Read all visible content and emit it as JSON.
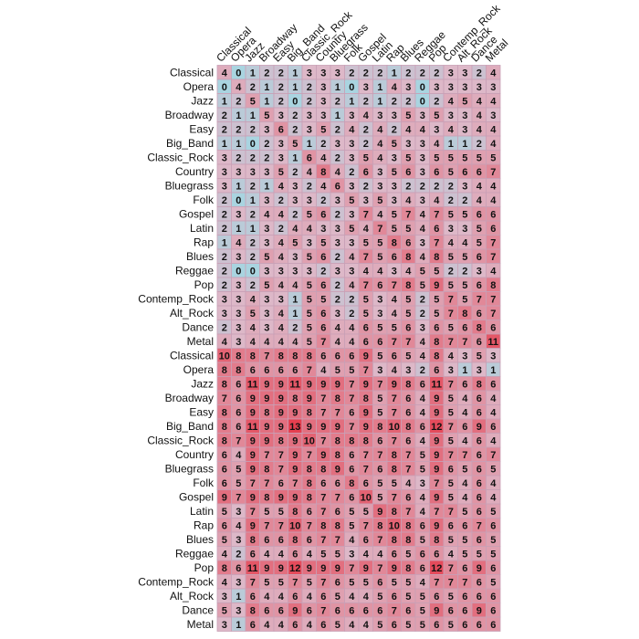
{
  "chart_data": {
    "type": "heatmap",
    "columns": [
      "Classical",
      "Opera",
      "Jazz",
      "Broadway",
      "Easy",
      "Big_Band",
      "Classic_Rock",
      "Country",
      "Bluegrass",
      "Folk",
      "Gospel",
      "Latin",
      "Rap",
      "Blues",
      "Reggae",
      "Pop",
      "Contemp_Rock",
      "Alt_Rock",
      "Dance",
      "Metal"
    ],
    "rows": [
      "Classical",
      "Opera",
      "Jazz",
      "Broadway",
      "Easy",
      "Big_Band",
      "Classic_Rock",
      "Country",
      "Bluegrass",
      "Folk",
      "Gospel",
      "Latin",
      "Rap",
      "Blues",
      "Reggae",
      "Pop",
      "Contemp_Rock",
      "Alt_Rock",
      "Dance",
      "Metal",
      "Classical",
      "Opera",
      "Jazz",
      "Broadway",
      "Easy",
      "Big_Band",
      "Classic_Rock",
      "Country",
      "Bluegrass",
      "Folk",
      "Gospel",
      "Latin",
      "Rap",
      "Blues",
      "Reggae",
      "Pop",
      "Contemp_Rock",
      "Alt_Rock",
      "Dance",
      "Metal"
    ],
    "values": [
      [
        4,
        0,
        1,
        2,
        2,
        1,
        3,
        3,
        3,
        2,
        2,
        2,
        1,
        2,
        2,
        2,
        3,
        3,
        2,
        4
      ],
      [
        0,
        4,
        2,
        1,
        2,
        1,
        2,
        3,
        1,
        0,
        3,
        1,
        4,
        3,
        0,
        3,
        3,
        3,
        3,
        3
      ],
      [
        1,
        2,
        5,
        1,
        2,
        0,
        2,
        3,
        2,
        1,
        2,
        1,
        2,
        2,
        0,
        2,
        4,
        5,
        4,
        4
      ],
      [
        2,
        1,
        1,
        5,
        3,
        2,
        3,
        3,
        1,
        3,
        4,
        3,
        3,
        5,
        3,
        5,
        3,
        3,
        4,
        3
      ],
      [
        2,
        2,
        2,
        3,
        6,
        2,
        3,
        5,
        2,
        4,
        2,
        4,
        2,
        4,
        4,
        3,
        4,
        3,
        4,
        4
      ],
      [
        1,
        1,
        0,
        2,
        3,
        5,
        1,
        2,
        3,
        3,
        2,
        4,
        5,
        3,
        3,
        4,
        1,
        1,
        2,
        4
      ],
      [
        3,
        2,
        2,
        2,
        3,
        1,
        6,
        4,
        2,
        3,
        5,
        4,
        3,
        5,
        3,
        5,
        5,
        5,
        5,
        5
      ],
      [
        3,
        3,
        3,
        3,
        5,
        2,
        4,
        8,
        4,
        2,
        6,
        3,
        5,
        6,
        3,
        6,
        5,
        6,
        6,
        7
      ],
      [
        3,
        1,
        2,
        1,
        4,
        3,
        2,
        4,
        6,
        3,
        2,
        3,
        3,
        2,
        2,
        2,
        2,
        3,
        4,
        4
      ],
      [
        2,
        0,
        1,
        3,
        2,
        3,
        3,
        2,
        3,
        5,
        3,
        5,
        3,
        4,
        3,
        4,
        2,
        2,
        4,
        4
      ],
      [
        2,
        3,
        2,
        4,
        4,
        2,
        5,
        6,
        2,
        3,
        7,
        4,
        5,
        7,
        4,
        7,
        5,
        5,
        6,
        6
      ],
      [
        2,
        1,
        1,
        3,
        2,
        4,
        4,
        3,
        3,
        5,
        4,
        7,
        5,
        5,
        4,
        6,
        3,
        3,
        5,
        6
      ],
      [
        1,
        4,
        2,
        3,
        4,
        5,
        3,
        5,
        3,
        3,
        5,
        5,
        8,
        6,
        3,
        7,
        4,
        4,
        5,
        7
      ],
      [
        2,
        3,
        2,
        5,
        4,
        3,
        5,
        6,
        2,
        4,
        7,
        5,
        6,
        8,
        4,
        8,
        5,
        5,
        6,
        7
      ],
      [
        2,
        0,
        0,
        3,
        3,
        3,
        3,
        2,
        3,
        3,
        4,
        4,
        3,
        4,
        5,
        5,
        2,
        2,
        3,
        4
      ],
      [
        2,
        3,
        2,
        5,
        4,
        4,
        5,
        6,
        2,
        4,
        7,
        6,
        7,
        8,
        5,
        9,
        5,
        5,
        6,
        8
      ],
      [
        3,
        3,
        4,
        3,
        3,
        1,
        5,
        5,
        2,
        2,
        5,
        3,
        4,
        5,
        2,
        5,
        7,
        5,
        7,
        7
      ],
      [
        3,
        3,
        5,
        3,
        4,
        1,
        5,
        6,
        3,
        2,
        5,
        3,
        4,
        5,
        2,
        5,
        7,
        8,
        6,
        7
      ],
      [
        2,
        3,
        4,
        3,
        4,
        2,
        5,
        6,
        4,
        4,
        6,
        5,
        5,
        6,
        3,
        6,
        5,
        6,
        8,
        6
      ],
      [
        4,
        3,
        4,
        4,
        4,
        4,
        5,
        7,
        4,
        4,
        6,
        6,
        7,
        7,
        4,
        8,
        7,
        7,
        6,
        11
      ],
      [
        10,
        8,
        8,
        7,
        8,
        8,
        8,
        6,
        6,
        6,
        9,
        5,
        6,
        5,
        4,
        8,
        4,
        3,
        5,
        3
      ],
      [
        8,
        8,
        6,
        6,
        6,
        6,
        7,
        4,
        5,
        5,
        7,
        3,
        4,
        3,
        2,
        6,
        3,
        1,
        3,
        1
      ],
      [
        8,
        6,
        11,
        9,
        9,
        11,
        9,
        9,
        9,
        7,
        9,
        7,
        9,
        8,
        6,
        11,
        7,
        6,
        8,
        6
      ],
      [
        7,
        6,
        9,
        9,
        9,
        8,
        9,
        7,
        8,
        7,
        8,
        5,
        7,
        6,
        4,
        9,
        5,
        4,
        6,
        4
      ],
      [
        8,
        6,
        9,
        8,
        9,
        9,
        8,
        7,
        7,
        6,
        9,
        5,
        7,
        6,
        4,
        9,
        5,
        4,
        6,
        4
      ],
      [
        8,
        6,
        11,
        9,
        9,
        13,
        9,
        9,
        9,
        7,
        9,
        8,
        10,
        8,
        6,
        12,
        7,
        6,
        9,
        6
      ],
      [
        8,
        7,
        9,
        9,
        8,
        9,
        10,
        7,
        8,
        8,
        8,
        6,
        7,
        6,
        4,
        9,
        5,
        4,
        6,
        4
      ],
      [
        6,
        4,
        9,
        7,
        7,
        9,
        7,
        9,
        8,
        6,
        7,
        7,
        8,
        7,
        5,
        9,
        7,
        7,
        6,
        7
      ],
      [
        6,
        5,
        9,
        8,
        7,
        9,
        8,
        8,
        9,
        6,
        7,
        6,
        8,
        7,
        5,
        9,
        6,
        5,
        6,
        5
      ],
      [
        6,
        5,
        7,
        7,
        6,
        7,
        8,
        6,
        6,
        8,
        6,
        5,
        5,
        4,
        3,
        7,
        5,
        4,
        6,
        4
      ],
      [
        9,
        7,
        9,
        8,
        9,
        9,
        8,
        7,
        7,
        6,
        10,
        5,
        7,
        6,
        4,
        9,
        5,
        4,
        6,
        4
      ],
      [
        5,
        3,
        7,
        5,
        5,
        8,
        6,
        7,
        6,
        5,
        5,
        9,
        8,
        7,
        4,
        7,
        7,
        5,
        6,
        5
      ],
      [
        6,
        4,
        9,
        7,
        7,
        10,
        7,
        8,
        8,
        5,
        7,
        8,
        10,
        8,
        6,
        9,
        6,
        6,
        7,
        6
      ],
      [
        5,
        3,
        8,
        6,
        6,
        8,
        6,
        7,
        7,
        4,
        6,
        7,
        8,
        8,
        5,
        8,
        5,
        5,
        6,
        5
      ],
      [
        4,
        2,
        6,
        4,
        4,
        6,
        4,
        5,
        5,
        3,
        4,
        4,
        6,
        5,
        6,
        6,
        4,
        5,
        5,
        5
      ],
      [
        8,
        6,
        11,
        9,
        9,
        12,
        9,
        9,
        9,
        7,
        9,
        7,
        9,
        8,
        6,
        12,
        7,
        6,
        9,
        6
      ],
      [
        4,
        3,
        7,
        5,
        5,
        7,
        5,
        7,
        6,
        5,
        5,
        6,
        5,
        5,
        4,
        7,
        7,
        7,
        6,
        5
      ],
      [
        3,
        1,
        6,
        4,
        4,
        6,
        4,
        6,
        5,
        4,
        4,
        5,
        6,
        5,
        5,
        6,
        5,
        6,
        6,
        6
      ],
      [
        5,
        3,
        8,
        6,
        6,
        9,
        6,
        7,
        6,
        6,
        6,
        6,
        7,
        6,
        5,
        9,
        6,
        6,
        9,
        6
      ],
      [
        3,
        1,
        6,
        4,
        4,
        6,
        4,
        6,
        5,
        4,
        4,
        5,
        6,
        5,
        5,
        6,
        5,
        6,
        6,
        6
      ]
    ],
    "title": "",
    "xlabel": "",
    "ylabel": "",
    "colors": {
      "low": "#a9d4e0",
      "mid": "#ddb8c8",
      "high": "#e63f4f",
      "grid": "#c9a0b6"
    }
  }
}
